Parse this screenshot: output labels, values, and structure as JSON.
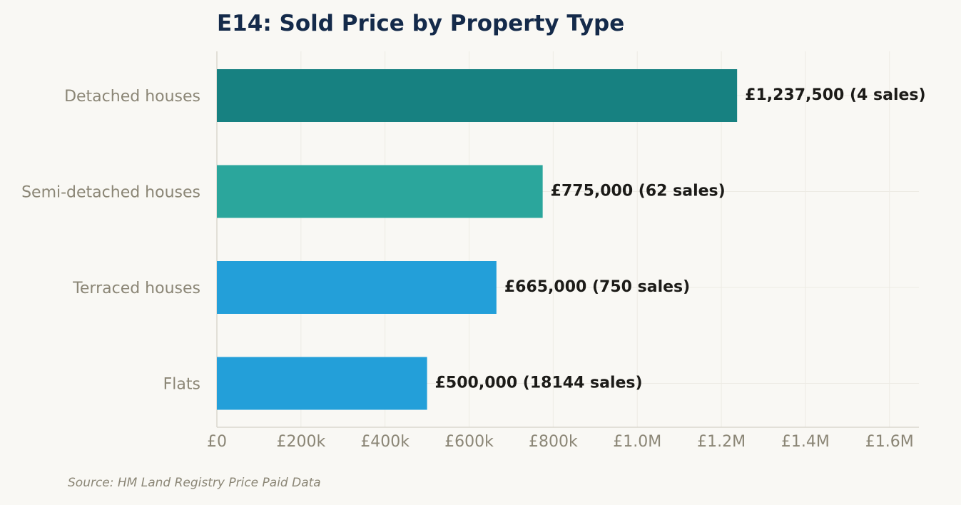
{
  "chart_data": {
    "type": "bar",
    "orientation": "horizontal",
    "title": "E14: Sold Price by Property Type",
    "categories": [
      "Detached houses",
      "Semi-detached houses",
      "Terraced houses",
      "Flats"
    ],
    "values": [
      1237500,
      775000,
      665000,
      500000
    ],
    "sales": [
      4,
      62,
      750,
      18144
    ],
    "data_labels": [
      "£1,237,500  (4 sales)",
      "£775,000  (62 sales)",
      "£665,000  (750 sales)",
      "£500,000  (18144 sales)"
    ],
    "bar_colors": [
      "#178181",
      "#2ba69c",
      "#239fd9",
      "#239fd9"
    ],
    "xlim": [
      0,
      1670000
    ],
    "x_ticks": [
      0,
      200000,
      400000,
      600000,
      800000,
      1000000,
      1200000,
      1400000,
      1600000
    ],
    "x_tick_labels": [
      "£0",
      "£200k",
      "£400k",
      "£600k",
      "£800k",
      "£1.0M",
      "£1.2M",
      "£1.4M",
      "£1.6M"
    ],
    "grid": true,
    "xlabel": "",
    "ylabel": ""
  },
  "source_note": "Source: HM Land Registry Price Paid Data",
  "colors": {
    "background": "#f9f8f4",
    "title": "#142a4a",
    "axis_text": "#8b8676",
    "grid": "#edebe4",
    "axis_line": "#d5d2c8"
  }
}
